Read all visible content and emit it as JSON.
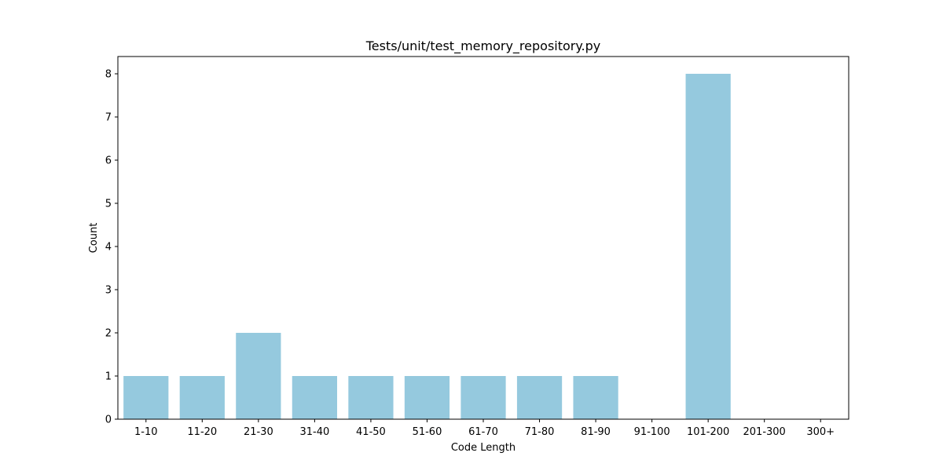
{
  "chart_data": {
    "type": "bar",
    "title": "Tests/unit/test_memory_repository.py",
    "xlabel": "Code Length",
    "ylabel": "Count",
    "categories": [
      "1-10",
      "11-20",
      "21-30",
      "31-40",
      "41-50",
      "51-60",
      "61-70",
      "71-80",
      "81-90",
      "91-100",
      "101-200",
      "201-300",
      "300+"
    ],
    "values": [
      1,
      1,
      2,
      1,
      1,
      1,
      1,
      1,
      1,
      0,
      8,
      0,
      0
    ],
    "ylim": [
      0,
      8.4
    ],
    "yticks": [
      0,
      1,
      2,
      3,
      4,
      5,
      6,
      7,
      8
    ],
    "grid": false,
    "bar_color": "#95c9de"
  }
}
